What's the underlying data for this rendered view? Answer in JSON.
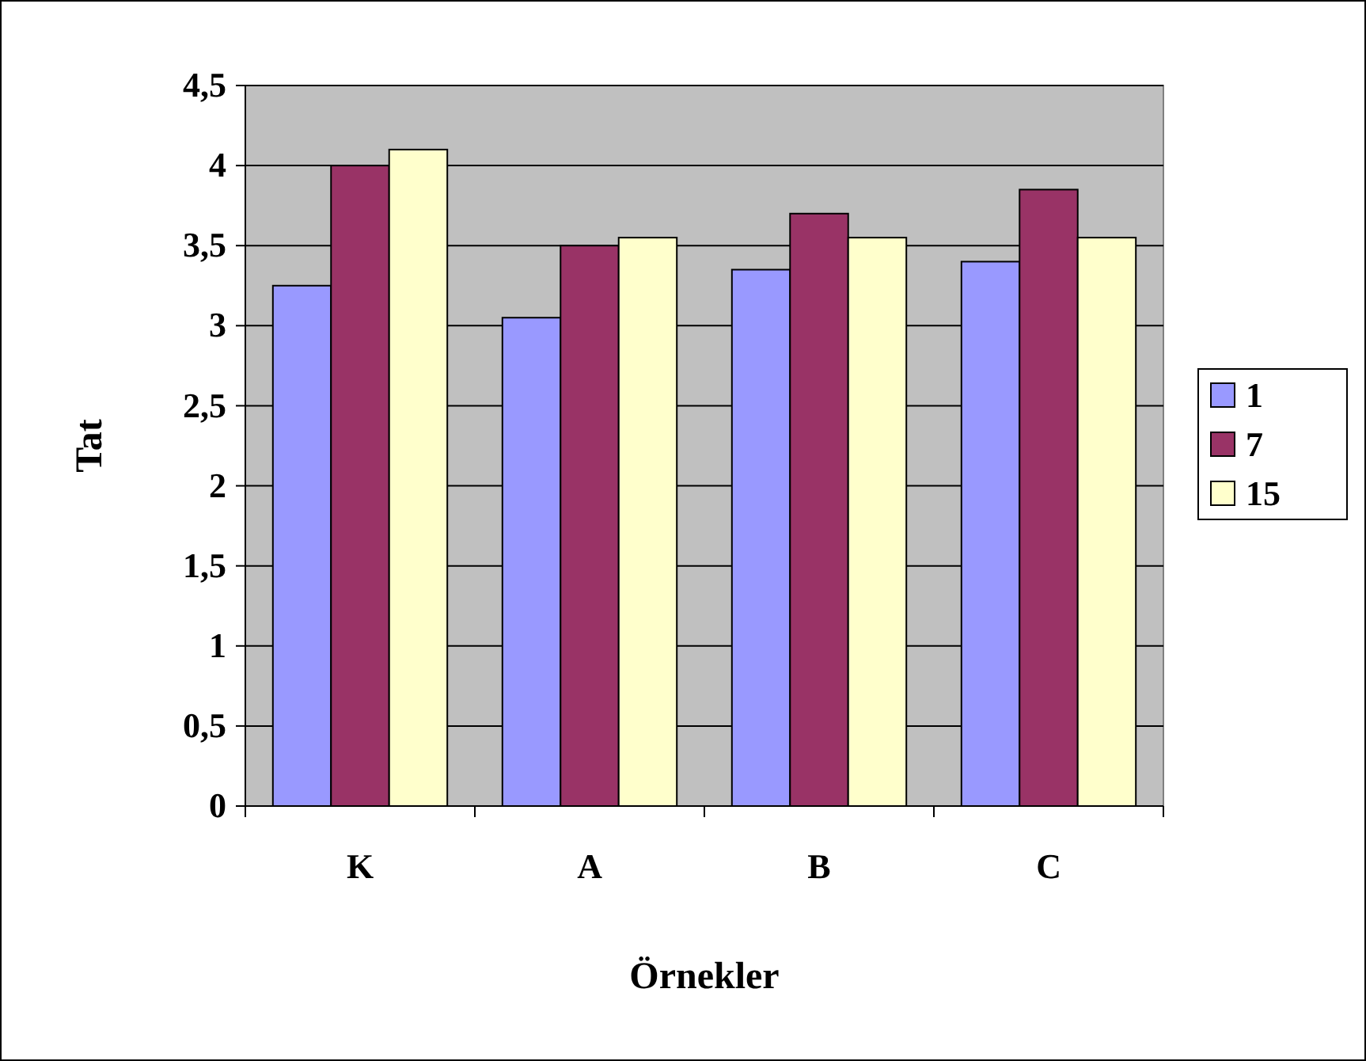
{
  "chart_data": {
    "type": "bar",
    "xlabel": "Örnekler",
    "ylabel": "Tat",
    "categories": [
      "K",
      "A",
      "B",
      "C"
    ],
    "series": [
      {
        "name": "1",
        "color": "#9999ff",
        "values": [
          3.25,
          3.05,
          3.35,
          3.4
        ]
      },
      {
        "name": "7",
        "color": "#993366",
        "values": [
          4.0,
          3.5,
          3.7,
          3.85
        ]
      },
      {
        "name": "15",
        "color": "#ffffcc",
        "values": [
          4.1,
          3.55,
          3.55,
          3.55
        ]
      }
    ],
    "ylim": [
      0,
      4.5
    ],
    "yticks": [
      0,
      {
        "value": 0.5,
        "label": "0,5"
      },
      1,
      {
        "value": 1.5,
        "label": "1,5"
      },
      2,
      {
        "value": 2.5,
        "label": "2,5"
      },
      3,
      {
        "value": 3.5,
        "label": "3,5"
      },
      4,
      {
        "value": 4.5,
        "label": "4,5"
      }
    ],
    "grid": "y",
    "legend": "right"
  }
}
